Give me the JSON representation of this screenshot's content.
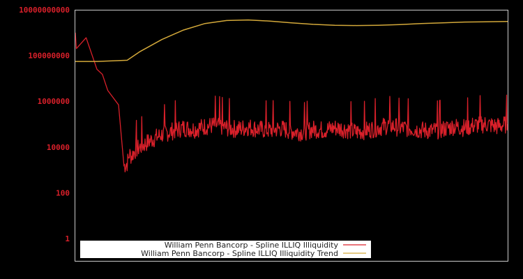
{
  "chart_data": {
    "type": "line",
    "title": "",
    "xlabel": "",
    "ylabel": "",
    "yscale": "log",
    "ylim": [
      0.3,
      10000000000
    ],
    "y_ticks": [
      "10000000000",
      "100000000",
      "1000000",
      "10000",
      "100",
      "1"
    ],
    "x_ticks": [],
    "grid": false,
    "legend_position": "lower-left inside",
    "colors": {
      "background": "#000000",
      "frame": "#cccccc",
      "tick_label": "#d9202a",
      "series_1": "#d9202a",
      "series_2": "#d4a93a",
      "legend_bg": "#ffffff"
    },
    "series": [
      {
        "name": "William Penn Bancorp - Spline ILLIQ Illiquidity",
        "color": "#d9202a",
        "x_index": [
          0,
          1,
          10,
          20,
          25,
          30,
          40,
          45,
          48,
          49,
          50,
          52,
          55,
          60,
          70,
          80,
          90,
          100,
          110,
          120,
          130,
          140,
          150,
          160,
          170,
          180,
          190,
          200,
          210,
          220,
          230,
          240,
          250,
          260,
          270,
          280,
          290,
          300,
          310,
          320,
          330,
          340,
          350,
          360,
          370,
          380,
          390,
          400
        ],
        "values": [
          1000000000,
          200000000,
          600000000,
          25000000,
          15000000,
          3000000,
          700000,
          1500,
          2000,
          3000,
          5000,
          4000,
          7000,
          10000,
          20000,
          35000,
          50000,
          70000,
          60000,
          80000,
          90000,
          70000,
          60000,
          75000,
          60000,
          55000,
          65000,
          50000,
          45000,
          60000,
          55000,
          70000,
          60000,
          45000,
          55000,
          70000,
          90000,
          70000,
          65000,
          55000,
          50000,
          60000,
          80000,
          70000,
          90000,
          100000,
          80000,
          100000
        ]
      },
      {
        "name": "William Penn Bancorp - Spline ILLIQ Illiquidity Trend",
        "color": "#d4a93a",
        "x_index": [
          0,
          20,
          48,
          60,
          80,
          100,
          120,
          140,
          160,
          180,
          200,
          220,
          240,
          260,
          280,
          300,
          320,
          340,
          360,
          380,
          400
        ],
        "values": [
          55000000,
          55000000,
          62000000,
          150000000,
          500000000,
          1300000000,
          2500000000,
          3400000000,
          3600000000,
          3200000000,
          2700000000,
          2300000000,
          2100000000,
          2050000000,
          2100000000,
          2250000000,
          2500000000,
          2700000000,
          2900000000,
          3000000000,
          3100000000
        ]
      }
    ]
  },
  "legend": {
    "items": [
      {
        "label": "William Penn Bancorp - Spline ILLIQ Illiquidity",
        "color": "#d9202a"
      },
      {
        "label": "William Penn Bancorp - Spline ILLIQ Illiquidity Trend",
        "color": "#d4a93a"
      }
    ]
  }
}
